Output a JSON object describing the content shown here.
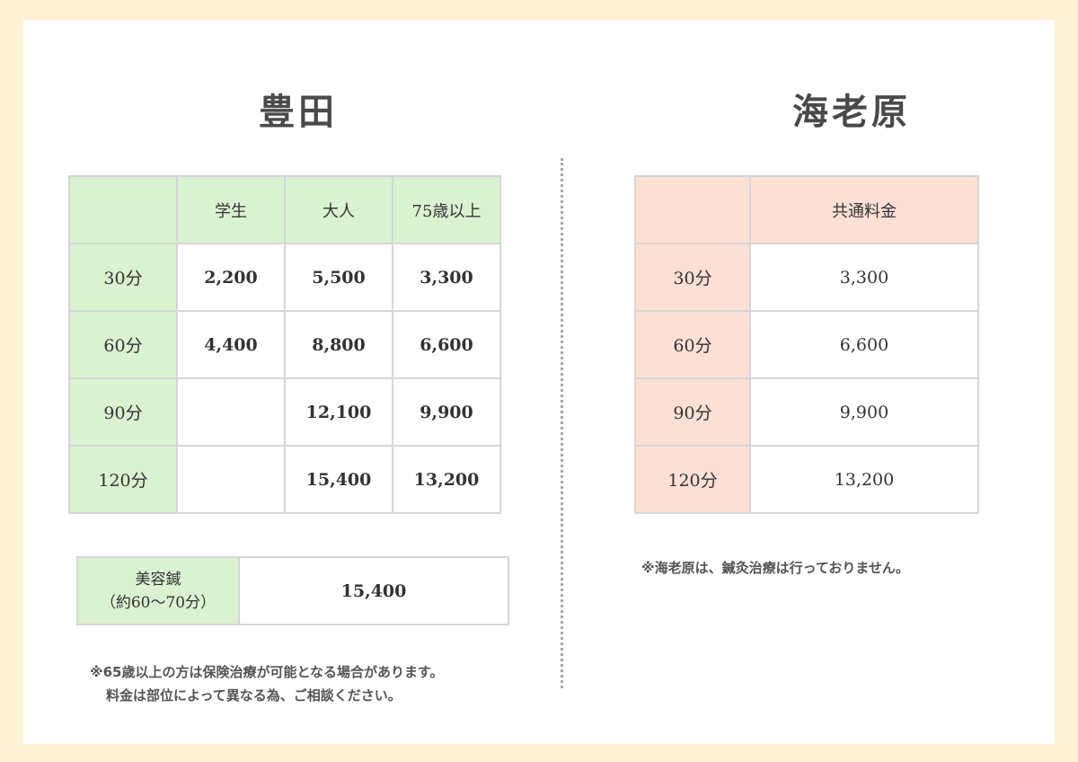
{
  "left": {
    "title": "豊田",
    "headers": [
      "",
      "学生",
      "大人",
      "75歳以上"
    ],
    "rows": [
      {
        "label": "30分",
        "cells": [
          "2,200",
          "5,500",
          "3,300"
        ]
      },
      {
        "label": "60分",
        "cells": [
          "4,400",
          "8,800",
          "6,600"
        ]
      },
      {
        "label": "90分",
        "cells": [
          "",
          "12,100",
          "9,900"
        ]
      },
      {
        "label": "120分",
        "cells": [
          "",
          "15,400",
          "13,200"
        ]
      }
    ],
    "beauty": {
      "label_line1": "美容鍼",
      "label_line2": "（約60〜70分）",
      "price": "15,400"
    },
    "note_line1": "※65歳以上の方は保険治療が可能となる場合があります。",
    "note_line2": "料金は部位によって異なる為、ご相談ください。"
  },
  "right": {
    "title": "海老原",
    "headers": [
      "",
      "共通料金"
    ],
    "rows": [
      {
        "label": "30分",
        "price": "3,300"
      },
      {
        "label": "60分",
        "price": "6,600"
      },
      {
        "label": "90分",
        "price": "9,900"
      },
      {
        "label": "120分",
        "price": "13,200"
      }
    ],
    "note": "※海老原は、鍼灸治療は行っておりません。"
  },
  "colors": {
    "background": "#fdf3d4",
    "green_header": "#d9f2d0",
    "pink_header": "#fde0d4"
  }
}
